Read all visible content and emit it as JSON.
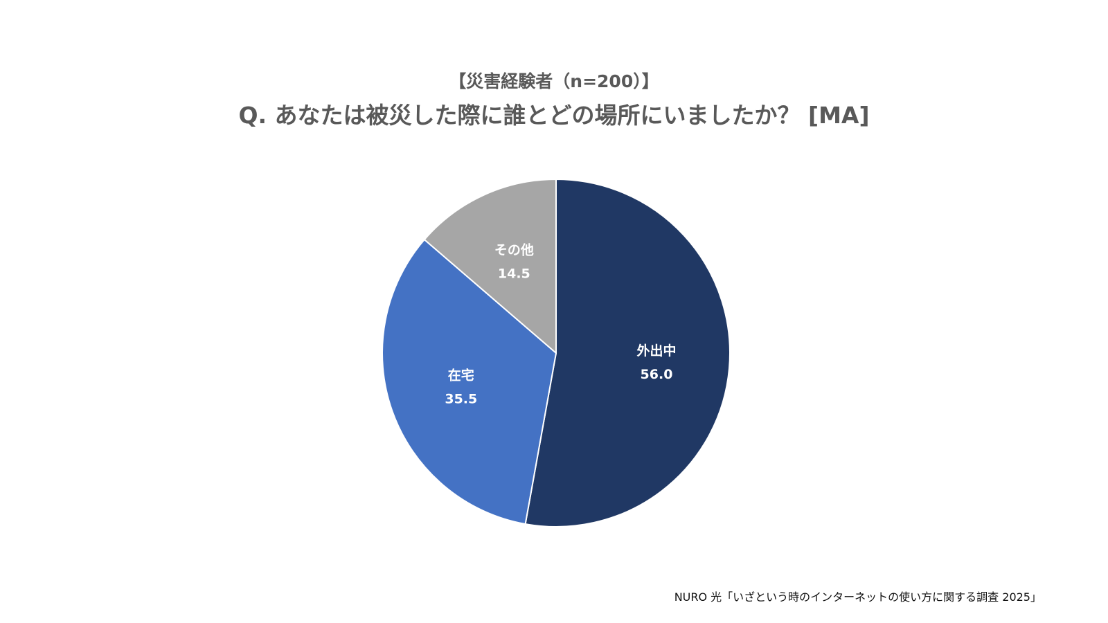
{
  "chart_data": {
    "type": "pie",
    "subtitle": "【災害経験者（n=200）】",
    "title": "Q. あなたは被災した際に誰とどの場所にいましたか？ [MA]",
    "categories": [
      "外出中",
      "在宅",
      "その他"
    ],
    "values": [
      56.0,
      35.5,
      14.5
    ],
    "value_labels": [
      "56.0",
      "35.5",
      "14.5"
    ],
    "colors": [
      "#203864",
      "#4472C4",
      "#A6A6A6"
    ],
    "label_color": "#FFFFFF",
    "start_angle": "12 o'clock",
    "direction": "clockwise",
    "legend": "none"
  },
  "source": "NURO 光「いざという時のインターネットの使い方に関する調査 2025」"
}
